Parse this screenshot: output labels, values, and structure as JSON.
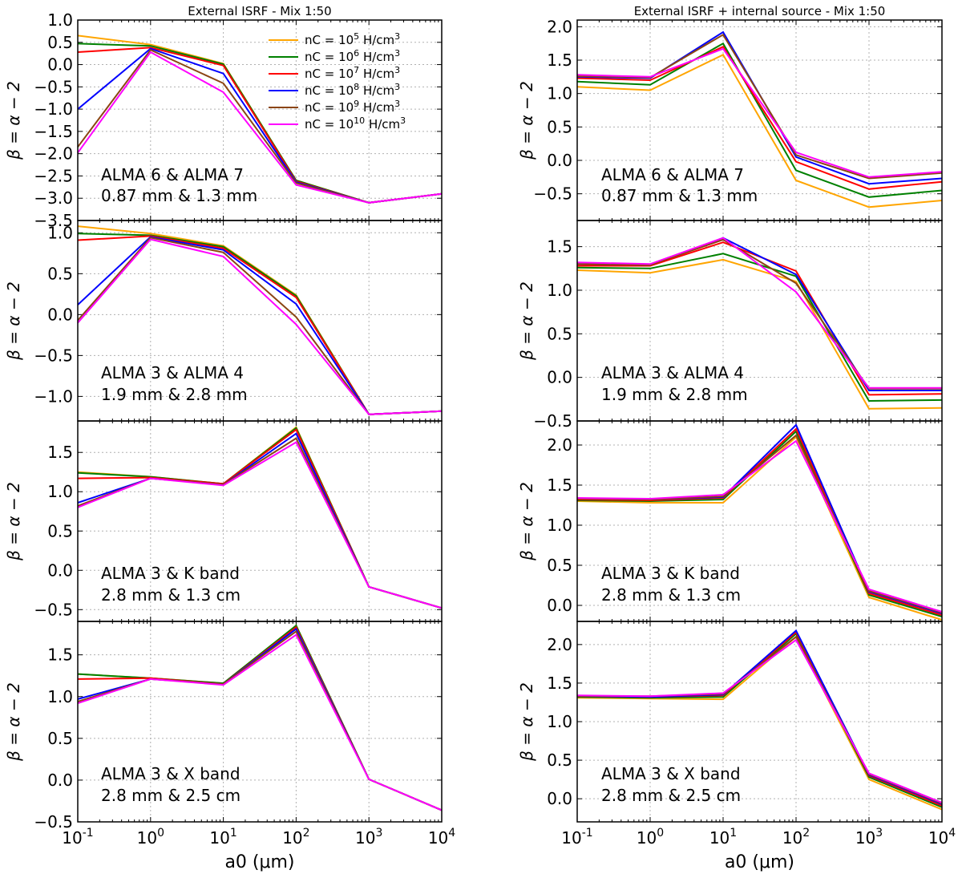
{
  "chart_data": {
    "type": "line",
    "x": [
      0.1,
      1,
      10,
      100,
      1000,
      10000
    ],
    "xlabel": "a0 (μm)",
    "xscale": "log",
    "xticks": [
      "10^-1",
      "10^0",
      "10^1",
      "10^2",
      "10^3",
      "10^4"
    ],
    "ylabel": "β = α − 2",
    "colors": {
      "orange": "#ffa500",
      "green": "#008000",
      "red": "#ff0000",
      "blue": "#0000ff",
      "brown": "#8b4513",
      "magenta": "#ff00ff"
    },
    "legend": {
      "location": "top-right of first panel",
      "entries": [
        {
          "base": "nC = 10",
          "exp": "5",
          "unit": "H/cm",
          "unit_exp": "3",
          "color": "#ffa500"
        },
        {
          "base": "nC = 10",
          "exp": "6",
          "unit": "H/cm",
          "unit_exp": "3",
          "color": "#008000"
        },
        {
          "base": "nC = 10",
          "exp": "7",
          "unit": "H/cm",
          "unit_exp": "3",
          "color": "#ff0000"
        },
        {
          "base": "nC = 10",
          "exp": "8",
          "unit": "H/cm",
          "unit_exp": "3",
          "color": "#0000ff"
        },
        {
          "base": "nC = 10",
          "exp": "9",
          "unit": "H/cm",
          "unit_exp": "3",
          "color": "#8b4513"
        },
        {
          "base": "nC = 10",
          "exp": "10",
          "unit": "H/cm",
          "unit_exp": "3",
          "color": "#ff00ff"
        }
      ]
    },
    "columns": [
      {
        "title": "External ISRF - Mix 1:50"
      },
      {
        "title": "External ISRF + internal source - Mix 1:50"
      }
    ],
    "panels": [
      {
        "col": 0,
        "row": 0,
        "ylim": [
          -3.5,
          1.0
        ],
        "yticks": [
          "1.0",
          "0.5",
          "0.0",
          "−0.5",
          "−1.0",
          "−1.5",
          "−2.0",
          "−2.5",
          "−3.0",
          "−3.5"
        ],
        "annotation": [
          "ALMA 6 & ALMA 7",
          "0.87 mm & 1.3 mm"
        ],
        "series": [
          {
            "name": "nC = 10^5",
            "color": "#ffa500",
            "values": [
              0.65,
              0.45,
              0.02,
              -2.6,
              -3.1,
              -2.9
            ]
          },
          {
            "name": "nC = 10^6",
            "color": "#008000",
            "values": [
              0.47,
              0.42,
              0.01,
              -2.6,
              -3.1,
              -2.9
            ]
          },
          {
            "name": "nC = 10^7",
            "color": "#ff0000",
            "values": [
              0.28,
              0.38,
              -0.02,
              -2.62,
              -3.1,
              -2.9
            ]
          },
          {
            "name": "nC = 10^8",
            "color": "#0000ff",
            "values": [
              -1.0,
              0.36,
              -0.2,
              -2.64,
              -3.1,
              -2.9
            ]
          },
          {
            "name": "nC = 10^9",
            "color": "#8b4513",
            "values": [
              -1.85,
              0.33,
              -0.42,
              -2.66,
              -3.1,
              -2.9
            ]
          },
          {
            "name": "nC = 10^10",
            "color": "#ff00ff",
            "values": [
              -1.98,
              0.28,
              -0.62,
              -2.7,
              -3.1,
              -2.9
            ]
          }
        ]
      },
      {
        "col": 0,
        "row": 1,
        "ylim": [
          -1.3,
          1.15
        ],
        "yticks": [
          "1.0",
          "0.5",
          "0.0",
          "−0.5",
          "−1.0"
        ],
        "annotation": [
          "ALMA 3 & ALMA 4",
          "1.9 mm & 2.8 mm"
        ],
        "series": [
          {
            "name": "nC = 10^5",
            "color": "#ffa500",
            "values": [
              1.08,
              0.99,
              0.84,
              0.24,
              -1.22,
              -1.18
            ]
          },
          {
            "name": "nC = 10^6",
            "color": "#008000",
            "values": [
              0.99,
              0.97,
              0.83,
              0.23,
              -1.22,
              -1.18
            ]
          },
          {
            "name": "nC = 10^7",
            "color": "#ff0000",
            "values": [
              0.91,
              0.96,
              0.81,
              0.21,
              -1.22,
              -1.18
            ]
          },
          {
            "name": "nC = 10^8",
            "color": "#0000ff",
            "values": [
              0.12,
              0.95,
              0.79,
              0.13,
              -1.22,
              -1.18
            ]
          },
          {
            "name": "nC = 10^9",
            "color": "#8b4513",
            "values": [
              -0.07,
              0.94,
              0.76,
              -0.03,
              -1.22,
              -1.18
            ]
          },
          {
            "name": "nC = 10^10",
            "color": "#ff00ff",
            "values": [
              -0.1,
              0.92,
              0.71,
              -0.12,
              -1.22,
              -1.18
            ]
          }
        ]
      },
      {
        "col": 0,
        "row": 2,
        "ylim": [
          -0.65,
          1.9
        ],
        "yticks": [
          "1.5",
          "1.0",
          "0.5",
          "0.0",
          "−0.5"
        ],
        "annotation": [
          "ALMA 3 & K band",
          "2.8 mm & 1.3 cm"
        ],
        "series": [
          {
            "name": "nC = 10^5",
            "color": "#ffa500",
            "values": [
              1.25,
              1.19,
              1.1,
              1.82,
              -0.21,
              -0.48
            ]
          },
          {
            "name": "nC = 10^6",
            "color": "#008000",
            "values": [
              1.24,
              1.19,
              1.1,
              1.81,
              -0.21,
              -0.48
            ]
          },
          {
            "name": "nC = 10^7",
            "color": "#ff0000",
            "values": [
              1.17,
              1.18,
              1.1,
              1.79,
              -0.21,
              -0.48
            ]
          },
          {
            "name": "nC = 10^8",
            "color": "#0000ff",
            "values": [
              0.86,
              1.17,
              1.09,
              1.74,
              -0.21,
              -0.48
            ]
          },
          {
            "name": "nC = 10^9",
            "color": "#8b4513",
            "values": [
              0.82,
              1.17,
              1.09,
              1.68,
              -0.21,
              -0.48
            ]
          },
          {
            "name": "nC = 10^10",
            "color": "#ff00ff",
            "values": [
              0.8,
              1.17,
              1.08,
              1.63,
              -0.21,
              -0.48
            ]
          }
        ]
      },
      {
        "col": 0,
        "row": 3,
        "ylim": [
          -0.5,
          1.9
        ],
        "yticks": [
          "1.5",
          "1.0",
          "0.5",
          "0.0",
          "−0.5"
        ],
        "annotation": [
          "ALMA 3 & X band",
          "2.8 mm & 2.5 cm"
        ],
        "series": [
          {
            "name": "nC = 10^5",
            "color": "#ffa500",
            "values": [
              1.27,
              1.22,
              1.16,
              1.85,
              0.01,
              -0.36
            ]
          },
          {
            "name": "nC = 10^6",
            "color": "#008000",
            "values": [
              1.27,
              1.22,
              1.16,
              1.85,
              0.01,
              -0.36
            ]
          },
          {
            "name": "nC = 10^7",
            "color": "#ff0000",
            "values": [
              1.21,
              1.22,
              1.15,
              1.83,
              0.01,
              -0.36
            ]
          },
          {
            "name": "nC = 10^8",
            "color": "#0000ff",
            "values": [
              0.97,
              1.21,
              1.15,
              1.81,
              0.01,
              -0.36
            ]
          },
          {
            "name": "nC = 10^9",
            "color": "#8b4513",
            "values": [
              0.94,
              1.21,
              1.15,
              1.78,
              0.01,
              -0.36
            ]
          },
          {
            "name": "nC = 10^10",
            "color": "#ff00ff",
            "values": [
              0.92,
              1.21,
              1.14,
              1.74,
              0.01,
              -0.36
            ]
          }
        ]
      },
      {
        "col": 1,
        "row": 0,
        "ylim": [
          -0.9,
          2.1
        ],
        "yticks": [
          "2.0",
          "1.5",
          "1.0",
          "0.5",
          "0.0",
          "−0.5"
        ],
        "annotation": [
          "ALMA 6 & ALMA 7",
          "0.87 mm & 1.3 mm"
        ],
        "series": [
          {
            "name": "nC = 10^5",
            "color": "#ffa500",
            "values": [
              1.1,
              1.05,
              1.58,
              -0.3,
              -0.7,
              -0.6
            ]
          },
          {
            "name": "nC = 10^6",
            "color": "#008000",
            "values": [
              1.18,
              1.13,
              1.75,
              -0.15,
              -0.55,
              -0.45
            ]
          },
          {
            "name": "nC = 10^7",
            "color": "#ff0000",
            "values": [
              1.23,
              1.2,
              1.7,
              -0.02,
              -0.43,
              -0.32
            ]
          },
          {
            "name": "nC = 10^8",
            "color": "#0000ff",
            "values": [
              1.25,
              1.23,
              1.92,
              0.05,
              -0.35,
              -0.27
            ]
          },
          {
            "name": "nC = 10^9",
            "color": "#8b4513",
            "values": [
              1.26,
              1.24,
              1.88,
              0.08,
              -0.27,
              -0.19
            ]
          },
          {
            "name": "nC = 10^10",
            "color": "#ff00ff",
            "values": [
              1.28,
              1.25,
              1.67,
              0.12,
              -0.25,
              -0.17
            ]
          }
        ]
      },
      {
        "col": 1,
        "row": 1,
        "ylim": [
          -0.5,
          1.8
        ],
        "yticks": [
          "1.5",
          "1.0",
          "0.5",
          "0.0",
          "−0.5"
        ],
        "annotation": [
          "ALMA 3 & ALMA 4",
          "1.9 mm & 2.8 mm"
        ],
        "series": [
          {
            "name": "nC = 10^5",
            "color": "#ffa500",
            "values": [
              1.23,
              1.2,
              1.35,
              1.1,
              -0.36,
              -0.35
            ]
          },
          {
            "name": "nC = 10^6",
            "color": "#008000",
            "values": [
              1.26,
              1.25,
              1.42,
              1.16,
              -0.27,
              -0.26
            ]
          },
          {
            "name": "nC = 10^7",
            "color": "#ff0000",
            "values": [
              1.28,
              1.28,
              1.55,
              1.22,
              -0.2,
              -0.19
            ]
          },
          {
            "name": "nC = 10^8",
            "color": "#0000ff",
            "values": [
              1.3,
              1.29,
              1.6,
              1.18,
              -0.15,
              -0.15
            ]
          },
          {
            "name": "nC = 10^9",
            "color": "#8b4513",
            "values": [
              1.3,
              1.29,
              1.58,
              1.08,
              -0.13,
              -0.13
            ]
          },
          {
            "name": "nC = 10^10",
            "color": "#ff00ff",
            "values": [
              1.32,
              1.3,
              1.6,
              0.98,
              -0.12,
              -0.12
            ]
          }
        ]
      },
      {
        "col": 1,
        "row": 2,
        "ylim": [
          -0.2,
          2.3
        ],
        "yticks": [
          "2.0",
          "1.5",
          "1.0",
          "0.5",
          "0.0"
        ],
        "annotation": [
          "ALMA 3 & K band",
          "2.8 mm & 1.3 cm"
        ],
        "series": [
          {
            "name": "nC = 10^5",
            "color": "#ffa500",
            "values": [
              1.3,
              1.28,
              1.28,
              2.1,
              0.1,
              -0.18
            ]
          },
          {
            "name": "nC = 10^6",
            "color": "#008000",
            "values": [
              1.31,
              1.3,
              1.32,
              2.17,
              0.13,
              -0.14
            ]
          },
          {
            "name": "nC = 10^7",
            "color": "#ff0000",
            "values": [
              1.32,
              1.31,
              1.34,
              2.2,
              0.15,
              -0.12
            ]
          },
          {
            "name": "nC = 10^8",
            "color": "#0000ff",
            "values": [
              1.33,
              1.32,
              1.35,
              2.25,
              0.17,
              -0.1
            ]
          },
          {
            "name": "nC = 10^9",
            "color": "#8b4513",
            "values": [
              1.33,
              1.32,
              1.36,
              2.12,
              0.18,
              -0.09
            ]
          },
          {
            "name": "nC = 10^10",
            "color": "#ff00ff",
            "values": [
              1.34,
              1.33,
              1.38,
              2.05,
              0.2,
              -0.08
            ]
          }
        ]
      },
      {
        "col": 1,
        "row": 3,
        "ylim": [
          -0.3,
          2.3
        ],
        "yticks": [
          "2.0",
          "1.5",
          "1.0",
          "0.5",
          "0.0"
        ],
        "annotation": [
          "ALMA 3 & X band",
          "2.8 mm & 2.5 cm"
        ],
        "series": [
          {
            "name": "nC = 10^5",
            "color": "#ffa500",
            "values": [
              1.31,
              1.3,
              1.29,
              2.1,
              0.25,
              -0.14
            ]
          },
          {
            "name": "nC = 10^6",
            "color": "#008000",
            "values": [
              1.32,
              1.31,
              1.32,
              2.14,
              0.28,
              -0.11
            ]
          },
          {
            "name": "nC = 10^7",
            "color": "#ff0000",
            "values": [
              1.33,
              1.32,
              1.34,
              2.16,
              0.3,
              -0.09
            ]
          },
          {
            "name": "nC = 10^8",
            "color": "#0000ff",
            "values": [
              1.33,
              1.32,
              1.35,
              2.18,
              0.31,
              -0.07
            ]
          },
          {
            "name": "nC = 10^9",
            "color": "#8b4513",
            "values": [
              1.33,
              1.33,
              1.36,
              2.1,
              0.32,
              -0.06
            ]
          },
          {
            "name": "nC = 10^10",
            "color": "#ff00ff",
            "values": [
              1.34,
              1.33,
              1.37,
              2.06,
              0.33,
              -0.05
            ]
          }
        ]
      }
    ]
  }
}
